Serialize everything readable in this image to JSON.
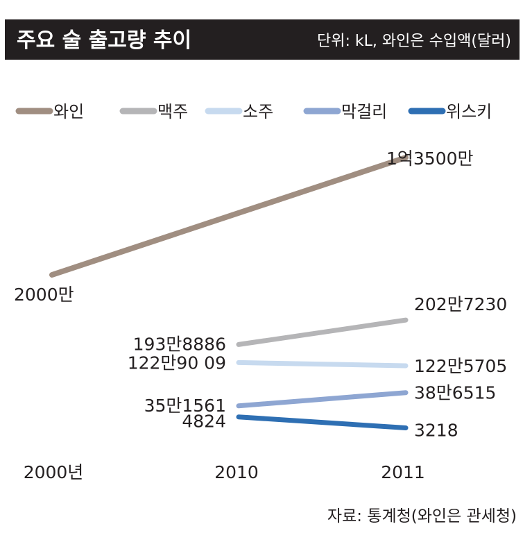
{
  "header": {
    "title": "주요 술 출고량 추이",
    "unit_note": "단위: kL, 와인은 수입액(달러)"
  },
  "chart_data": {
    "type": "line",
    "x": [
      "2000년",
      "2010",
      "2011"
    ],
    "series": [
      {
        "name": "와인",
        "color": "#a08e81",
        "values": [
          20000000,
          null,
          135000000
        ],
        "labels": [
          "2000만",
          "",
          "1억3500만"
        ]
      },
      {
        "name": "맥주",
        "color": "#b5b5b7",
        "values": [
          null,
          1938886,
          2027230
        ],
        "labels": [
          "",
          "193만8886",
          "202만7230"
        ]
      },
      {
        "name": "소주",
        "color": "#c7daef",
        "values": [
          null,
          1229009,
          1225705
        ],
        "labels": [
          "",
          "122만90 09",
          "122만5705"
        ]
      },
      {
        "name": "막걸리",
        "color": "#8ea6d2",
        "values": [
          null,
          351561,
          386515
        ],
        "labels": [
          "",
          "35만1561",
          "38만6515"
        ]
      },
      {
        "name": "위스키",
        "color": "#2e6fb3",
        "values": [
          null,
          4824,
          3218
        ],
        "labels": [
          "",
          "4824",
          "3218"
        ]
      }
    ]
  },
  "footer": {
    "source": "자료: 통계청(와인은 관세청)"
  }
}
